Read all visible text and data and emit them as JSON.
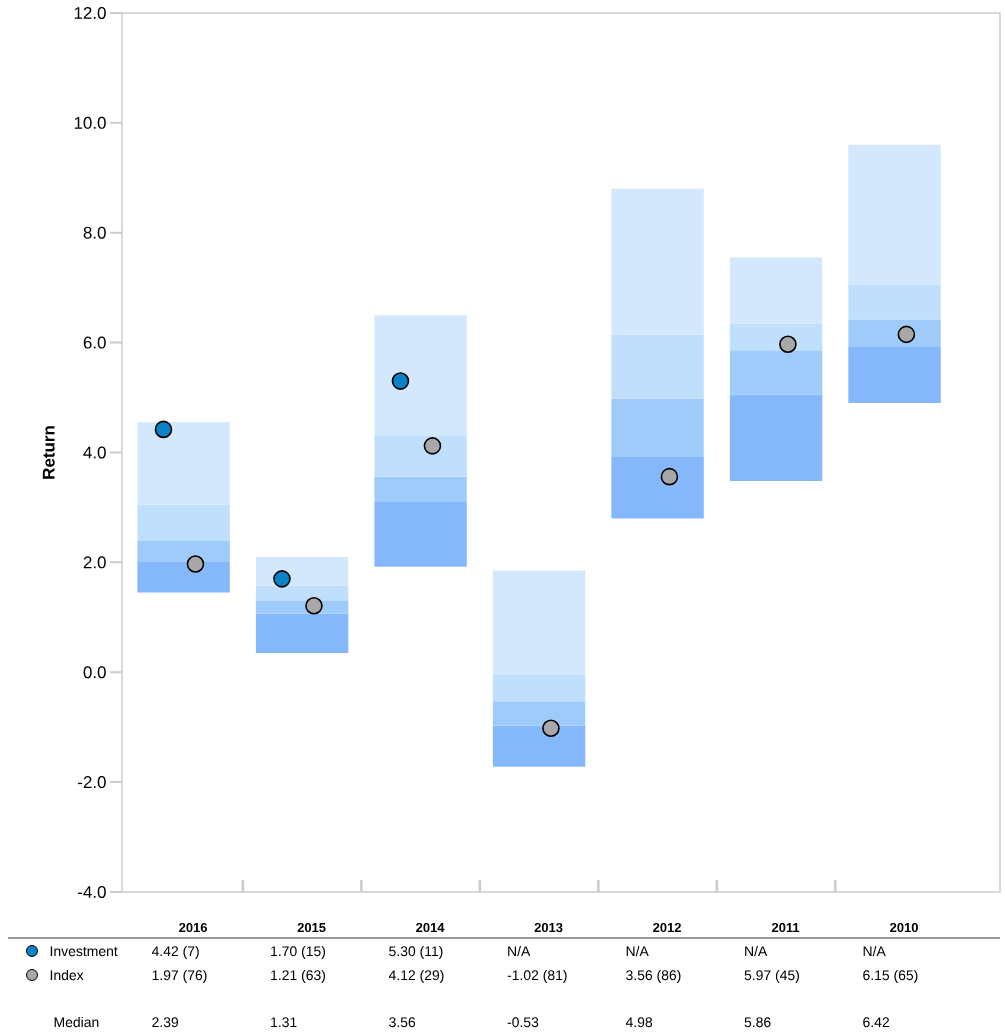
{
  "chart_data": {
    "type": "bar",
    "ylabel": "Return",
    "categories": [
      "2016",
      "2015",
      "2014",
      "2013",
      "2012",
      "2011",
      "2010"
    ],
    "series": [
      {
        "color": "#85b8fa",
        "base": [
          1.45,
          0.35,
          1.92,
          -1.72,
          2.8,
          3.48,
          4.9
        ],
        "values": [
          0.57,
          0.72,
          1.18,
          0.75,
          1.12,
          1.57,
          1.02
        ]
      },
      {
        "color": "#9fcbfb",
        "base": [
          2.02,
          1.07,
          3.1,
          -0.97,
          3.92,
          5.05,
          5.92
        ],
        "values": [
          0.37,
          0.24,
          0.46,
          0.44,
          1.06,
          0.81,
          0.5
        ]
      },
      {
        "color": "#c0dffc",
        "base": [
          2.39,
          1.31,
          3.56,
          -0.53,
          4.98,
          5.86,
          6.42
        ],
        "values": [
          0.66,
          0.27,
          0.74,
          0.48,
          1.17,
          0.49,
          0.63
        ]
      },
      {
        "color": "#d4e8fd",
        "base": [
          3.05,
          1.58,
          4.3,
          -0.05,
          6.15,
          6.35,
          7.05
        ],
        "values": [
          1.5,
          0.52,
          2.2,
          1.9,
          2.65,
          1.2,
          2.55
        ]
      },
      {
        "type": "scatter",
        "name": "Investment",
        "color": "#0a83c6",
        "values": [
          4.42,
          1.7,
          5.3,
          null,
          null,
          null,
          null
        ],
        "value_labels": [
          "4.42 (7)",
          "1.70 (15)",
          "5.30 (11)",
          "N/A",
          "N/A",
          "N/A",
          "N/A"
        ]
      },
      {
        "type": "scatter",
        "name": "Index",
        "color": "#a8a8a8",
        "values": [
          1.97,
          1.21,
          4.12,
          -1.02,
          3.56,
          5.97,
          6.15
        ],
        "value_labels": [
          "1.97 (76)",
          "1.21 (63)",
          "4.12 (29)",
          "-1.02 (81)",
          "3.56 (86)",
          "5.97 (45)",
          "6.15 (65)"
        ]
      }
    ],
    "ylim": [
      -4,
      12
    ],
    "yticks": [
      {
        "value": -4,
        "label": "-4.0"
      },
      {
        "value": -2,
        "label": "-2.0"
      },
      {
        "value": 0,
        "label": "0.0"
      },
      {
        "value": 2,
        "label": "2.0"
      },
      {
        "value": 4,
        "label": "4.0"
      },
      {
        "value": 6,
        "label": "6.0"
      },
      {
        "value": 8,
        "label": "8.0"
      },
      {
        "value": 10,
        "label": "10.0"
      },
      {
        "value": 12,
        "label": "12.0"
      }
    ],
    "marker": "circle",
    "legend": "bottom",
    "annotations": [
      "Median",
      "2.39",
      "1.31",
      "3.56",
      "-0.53",
      "4.98",
      "5.86",
      "6.42"
    ]
  }
}
